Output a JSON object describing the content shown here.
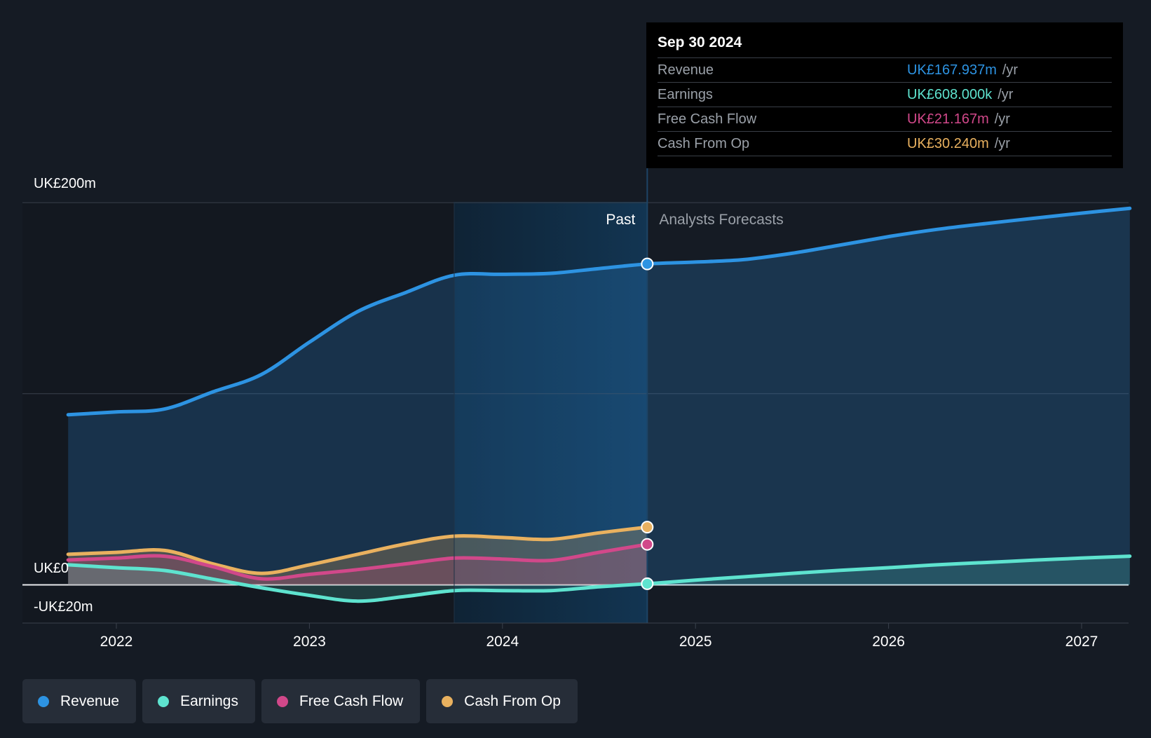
{
  "chart_data": {
    "type": "line",
    "x_ticks": [
      "2022",
      "2023",
      "2024",
      "2025",
      "2026",
      "2027"
    ],
    "x_tick_values": [
      2022.0,
      2023.0,
      2024.0,
      2025.0,
      2026.0,
      2027.0
    ],
    "xlim": [
      2021.5,
      2027.25
    ],
    "ylim": [
      -20,
      200
    ],
    "y_labels": [
      "UK£200m",
      "UK£0",
      "-UK£20m"
    ],
    "y_label_values": [
      200,
      0,
      -20
    ],
    "gridlines": [
      200,
      100,
      0,
      -20
    ],
    "past_start": 2023.75,
    "divider": 2024.75,
    "past_label": "Past",
    "forecast_label": "Analysts Forecasts",
    "series": [
      {
        "name": "Revenue",
        "color": "#2d93e2",
        "points": [
          [
            2021.75,
            89
          ],
          [
            2022.0,
            90.5
          ],
          [
            2022.25,
            92
          ],
          [
            2022.5,
            101
          ],
          [
            2022.75,
            110
          ],
          [
            2023.0,
            127
          ],
          [
            2023.25,
            143
          ],
          [
            2023.5,
            153
          ],
          [
            2023.75,
            162
          ],
          [
            2024.0,
            162.5
          ],
          [
            2024.25,
            163
          ],
          [
            2024.5,
            165.5
          ],
          [
            2024.75,
            167.9
          ],
          [
            2025.0,
            168.9
          ],
          [
            2025.25,
            170.2
          ],
          [
            2025.5,
            173.5
          ],
          [
            2025.75,
            177.8
          ],
          [
            2026.0,
            182.2
          ],
          [
            2026.25,
            186
          ],
          [
            2026.5,
            189
          ],
          [
            2026.75,
            191.8
          ],
          [
            2027.0,
            194.5
          ],
          [
            2027.25,
            197
          ]
        ],
        "past_until": 2024.75
      },
      {
        "name": "Earnings",
        "color": "#5ee3cf",
        "points": [
          [
            2021.75,
            10.5
          ],
          [
            2022.0,
            9
          ],
          [
            2022.25,
            7.5
          ],
          [
            2022.5,
            3
          ],
          [
            2022.75,
            -1.5
          ],
          [
            2023.0,
            -5.5
          ],
          [
            2023.25,
            -8.5
          ],
          [
            2023.5,
            -6
          ],
          [
            2023.75,
            -3
          ],
          [
            2024.0,
            -3
          ],
          [
            2024.25,
            -3
          ],
          [
            2024.5,
            -1
          ],
          [
            2024.75,
            0.6
          ],
          [
            2025.0,
            2.5
          ],
          [
            2025.25,
            4.2
          ],
          [
            2025.5,
            6
          ],
          [
            2025.75,
            7.6
          ],
          [
            2026.0,
            9
          ],
          [
            2026.25,
            10.5
          ],
          [
            2026.5,
            11.7
          ],
          [
            2026.75,
            12.9
          ],
          [
            2027.0,
            14
          ],
          [
            2027.25,
            15
          ]
        ],
        "past_until": 2024.75
      },
      {
        "name": "Free Cash Flow",
        "color": "#d1488a",
        "points": [
          [
            2021.75,
            13
          ],
          [
            2022.0,
            14
          ],
          [
            2022.25,
            15
          ],
          [
            2022.5,
            9.5
          ],
          [
            2022.75,
            3.2
          ],
          [
            2023.0,
            5.5
          ],
          [
            2023.25,
            8
          ],
          [
            2023.5,
            11
          ],
          [
            2023.75,
            14
          ],
          [
            2024.0,
            13.5
          ],
          [
            2024.25,
            12.8
          ],
          [
            2024.5,
            17
          ],
          [
            2024.75,
            21.2
          ]
        ],
        "past_until": 2024.75
      },
      {
        "name": "Cash From Op",
        "color": "#e9b15f",
        "points": [
          [
            2021.75,
            16
          ],
          [
            2022.0,
            17
          ],
          [
            2022.25,
            18
          ],
          [
            2022.5,
            11
          ],
          [
            2022.75,
            6
          ],
          [
            2023.0,
            10.5
          ],
          [
            2023.25,
            16
          ],
          [
            2023.5,
            21.5
          ],
          [
            2023.75,
            25.5
          ],
          [
            2024.0,
            24.8
          ],
          [
            2024.25,
            23.8
          ],
          [
            2024.5,
            27.2
          ],
          [
            2024.75,
            30.2
          ]
        ],
        "past_until": 2024.75
      }
    ]
  },
  "tooltip": {
    "date": "Sep 30 2024",
    "rows": [
      {
        "label": "Revenue",
        "value": "UK£167.937m",
        "unit": "/yr",
        "color": "#2d93e2"
      },
      {
        "label": "Earnings",
        "value": "UK£608.000k",
        "unit": "/yr",
        "color": "#5ee3cf"
      },
      {
        "label": "Free Cash Flow",
        "value": "UK£21.167m",
        "unit": "/yr",
        "color": "#d1488a"
      },
      {
        "label": "Cash From Op",
        "value": "UK£30.240m",
        "unit": "/yr",
        "color": "#e9b15f"
      }
    ]
  },
  "legend": [
    {
      "label": "Revenue",
      "color": "#2d93e2"
    },
    {
      "label": "Earnings",
      "color": "#5ee3cf"
    },
    {
      "label": "Free Cash Flow",
      "color": "#d1488a"
    },
    {
      "label": "Cash From Op",
      "color": "#e9b15f"
    }
  ]
}
